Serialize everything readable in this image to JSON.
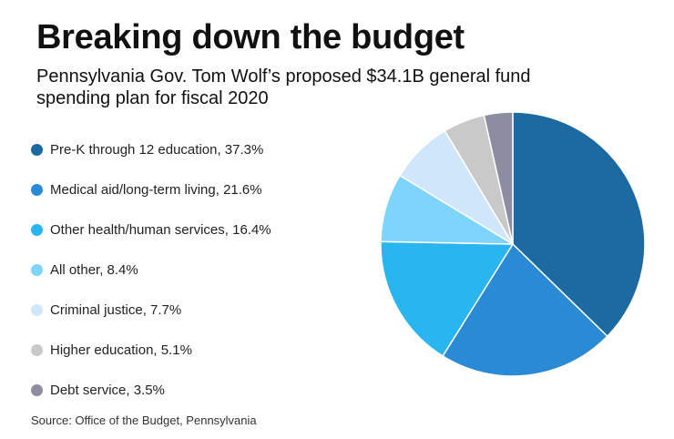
{
  "chart_data": {
    "type": "pie",
    "title": "Breaking down the budget",
    "subtitle": "Pennsylvania Gov. Tom Wolf’s proposed $34.1B general fund spending plan for fiscal 2020",
    "source": "Source: Office of the Budget, Pennsylvania",
    "slices": [
      {
        "label": "Pre-K through 12 education",
        "value": 37.3,
        "legend_text": "Pre-K through 12 education, 37.3%",
        "color": "#1b6aa1"
      },
      {
        "label": "Medical aid/long-term living",
        "value": 21.6,
        "legend_text": "Medical aid/long-term living, 21.6%",
        "color": "#2a8ad6"
      },
      {
        "label": "Other health/human services",
        "value": 16.4,
        "legend_text": "Other health/human services, 16.4%",
        "color": "#29b5ef"
      },
      {
        "label": "All other",
        "value": 8.4,
        "legend_text": "All other, 8.4%",
        "color": "#7fd4fb"
      },
      {
        "label": "Criminal justice",
        "value": 7.7,
        "legend_text": "Criminal justice, 7.7%",
        "color": "#cfe6fb"
      },
      {
        "label": "Higher education",
        "value": 5.1,
        "legend_text": "Higher education, 5.1%",
        "color": "#c9c9c9"
      },
      {
        "label": "Debt service",
        "value": 3.5,
        "legend_text": "Debt service, 3.5%",
        "color": "#8c8da1"
      }
    ]
  }
}
